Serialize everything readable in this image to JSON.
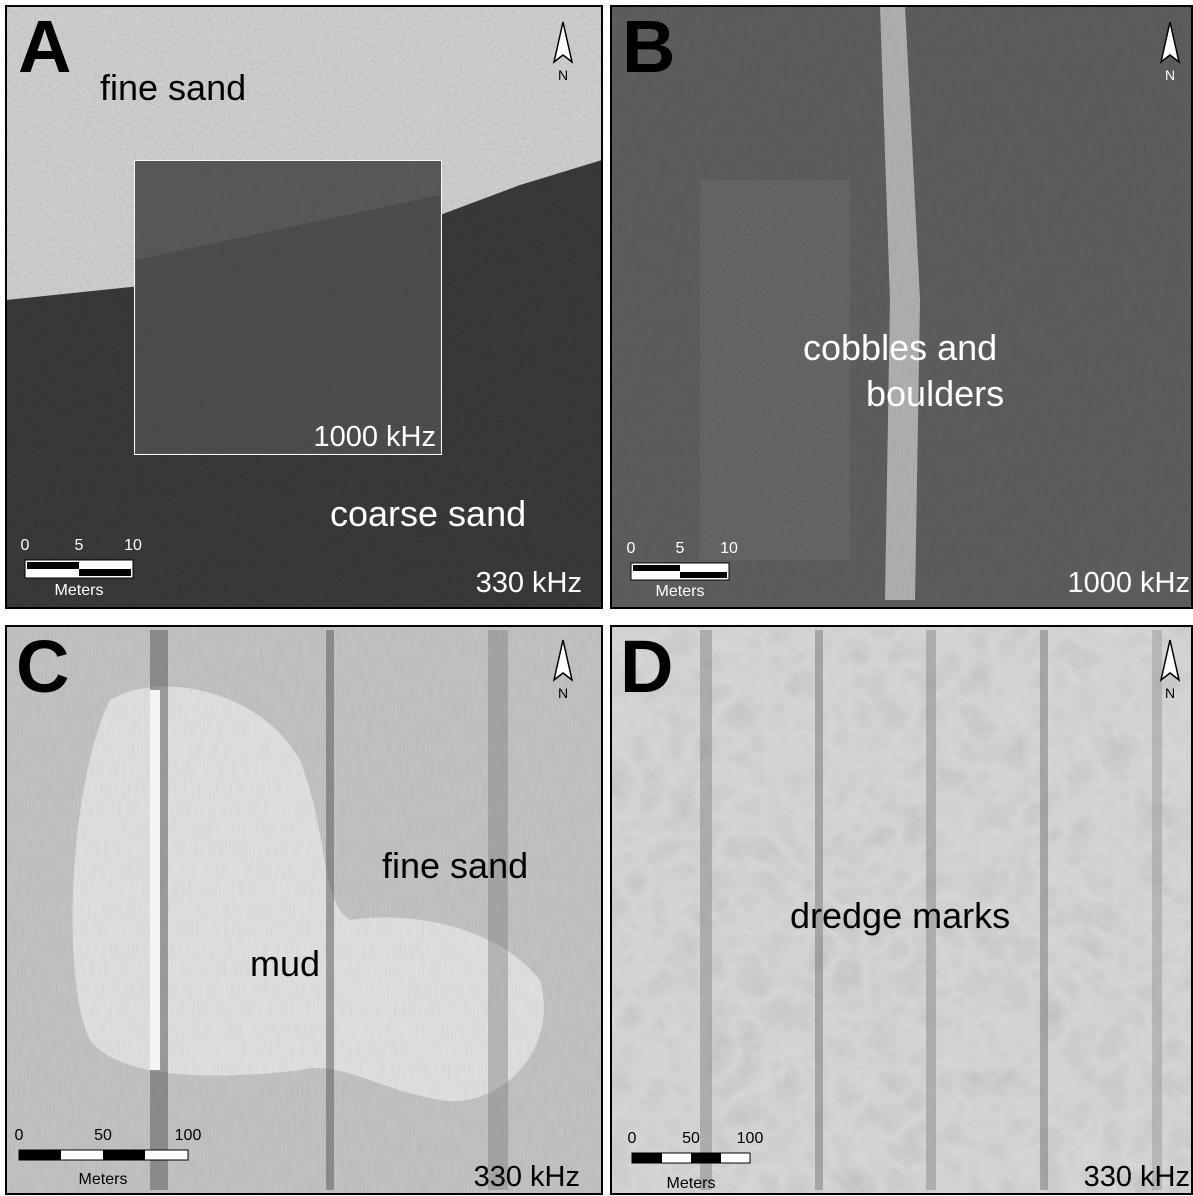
{
  "panels": [
    {
      "letter": "A",
      "labels": [
        "fine sand",
        "coarse sand"
      ],
      "inset_label": "1000 kHz",
      "frequency": "330 kHz",
      "scale_ticks": [
        "0",
        "5",
        "10"
      ],
      "scale_unit": "Meters",
      "north": "N"
    },
    {
      "letter": "B",
      "labels": [
        "cobbles and",
        "boulders"
      ],
      "frequency": "1000 kHz",
      "scale_ticks": [
        "0",
        "5",
        "10"
      ],
      "scale_unit": "Meters",
      "north": "N"
    },
    {
      "letter": "C",
      "labels": [
        "fine sand",
        "mud"
      ],
      "frequency": "330 kHz",
      "scale_ticks": [
        "0",
        "50",
        "100"
      ],
      "scale_unit": "Meters",
      "north": "N"
    },
    {
      "letter": "D",
      "labels": [
        "dredge marks"
      ],
      "frequency": "330 kHz",
      "scale_ticks": [
        "0",
        "50",
        "100"
      ],
      "scale_unit": "Meters",
      "north": "N"
    }
  ]
}
